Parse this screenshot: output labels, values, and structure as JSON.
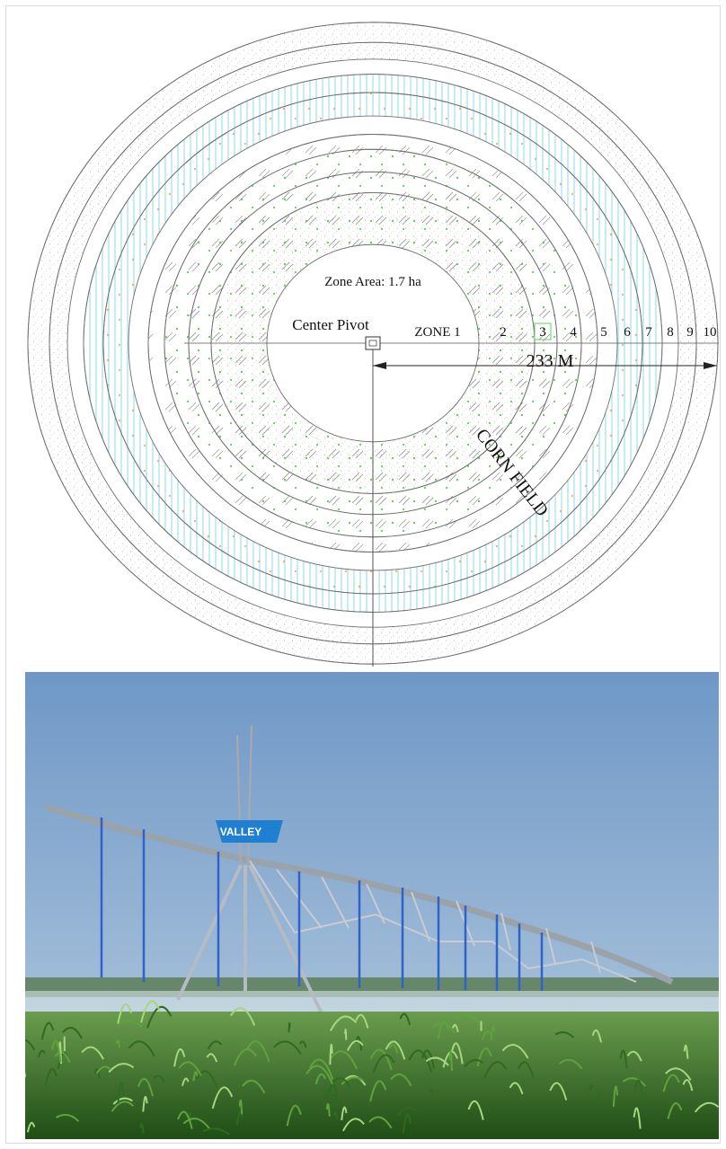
{
  "diagram": {
    "zone_area_label": "Zone Area: 1.7 ha",
    "center_label": "Center Pivot",
    "zone_labels": [
      "ZONE 1",
      "2",
      "3",
      "4",
      "5",
      "6",
      "7",
      "8",
      "9",
      "10"
    ],
    "radius_label": "233 M",
    "field_label": "CORN FIELD"
  },
  "photo": {
    "brand_text": "VALLEY",
    "subject": "center-pivot-irrigation-over-corn-field"
  },
  "colors": {
    "line": "#6f6f6f",
    "stipple": "#bdbdbd",
    "cyan_hatch": "#7fd6e8",
    "green_dots": "#5fcf5f",
    "orange_dots": "#f0b060",
    "sky_top": "#6f97c6",
    "sky_bottom": "#a9c3da",
    "corn": "#3e8a2a",
    "pipe": "#b9bfc6",
    "drop": "#2f63c9",
    "valley_blue": "#1f7fd0"
  }
}
